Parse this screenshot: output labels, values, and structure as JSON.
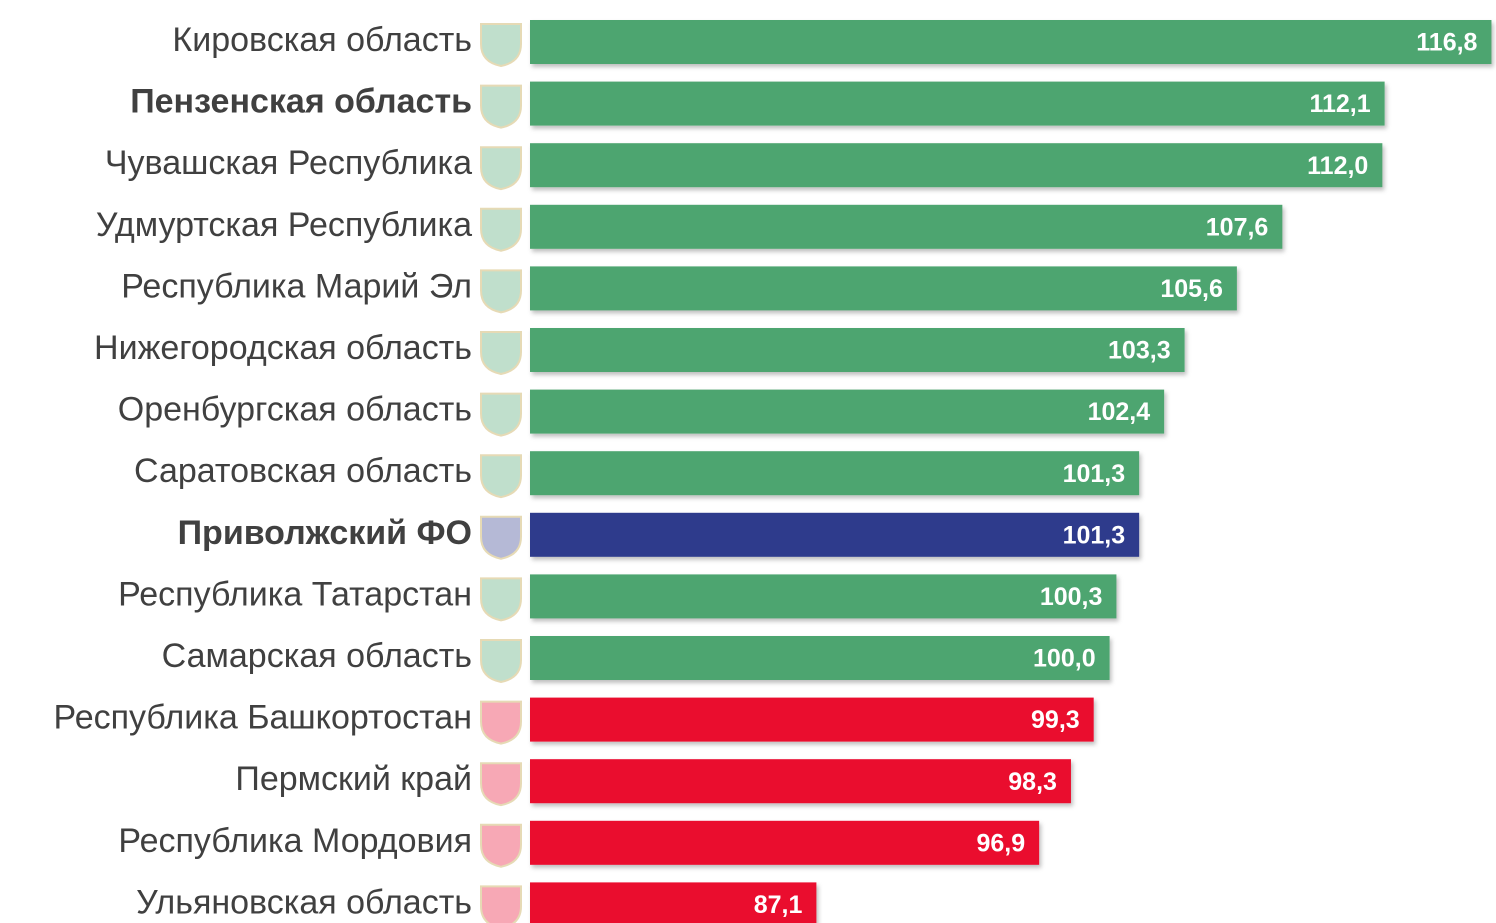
{
  "chart_data": {
    "type": "bar",
    "orientation": "horizontal",
    "categories": [
      "Кировская область",
      "Пензенская область",
      "Чувашская Республика",
      "Удмуртская Республика",
      "Республика Марий Эл",
      "Нижегородская область",
      "Оренбургская область",
      "Саратовская область",
      "Приволжский ФО",
      "Республика Татарстан",
      "Самарская область",
      "Республика Башкортостан",
      "Пермский край",
      "Республика Мордовия",
      "Ульяновская область"
    ],
    "values": [
      116.8,
      112.1,
      112.0,
      107.6,
      105.6,
      103.3,
      102.4,
      101.3,
      101.3,
      100.3,
      100.0,
      99.3,
      98.3,
      96.9,
      87.1
    ],
    "value_labels": [
      "116,8",
      "112,1",
      "112,0",
      "107,6",
      "105,6",
      "103,3",
      "102,4",
      "101,3",
      "101,3",
      "100,3",
      "100,0",
      "99,3",
      "98,3",
      "96,9",
      "87,1"
    ],
    "colors": [
      "#4ea56f",
      "#4ea56f",
      "#4ea56f",
      "#4ea56f",
      "#4ea56f",
      "#4ea56f",
      "#4ea56f",
      "#4ea56f",
      "#2e3a8c",
      "#4ea56f",
      "#4ea56f",
      "#ea0a2e",
      "#ea0a2e",
      "#ea0a2e",
      "#ea0a2e"
    ],
    "bold": [
      false,
      true,
      false,
      false,
      false,
      false,
      false,
      false,
      true,
      false,
      false,
      false,
      false,
      false,
      false
    ],
    "xlim": [
      74.5,
      117
    ]
  }
}
